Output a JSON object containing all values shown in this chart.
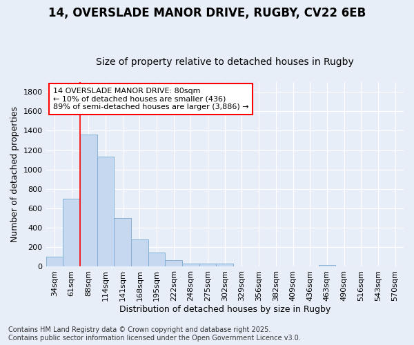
{
  "title1": "14, OVERSLADE MANOR DRIVE, RUGBY, CV22 6EB",
  "title2": "Size of property relative to detached houses in Rugby",
  "xlabel": "Distribution of detached houses by size in Rugby",
  "ylabel": "Number of detached properties",
  "categories": [
    "34sqm",
    "61sqm",
    "88sqm",
    "114sqm",
    "141sqm",
    "168sqm",
    "195sqm",
    "222sqm",
    "248sqm",
    "275sqm",
    "302sqm",
    "329sqm",
    "356sqm",
    "382sqm",
    "409sqm",
    "436sqm",
    "463sqm",
    "490sqm",
    "516sqm",
    "543sqm",
    "570sqm"
  ],
  "values": [
    100,
    700,
    1360,
    1130,
    500,
    280,
    145,
    70,
    35,
    30,
    30,
    0,
    0,
    0,
    0,
    0,
    20,
    0,
    0,
    0,
    0
  ],
  "bar_color": "#c5d8f0",
  "bar_edge_color": "#7aaad0",
  "vline_x_idx": 2,
  "vline_color": "red",
  "annotation_text": "14 OVERSLADE MANOR DRIVE: 80sqm\n← 10% of detached houses are smaller (436)\n89% of semi-detached houses are larger (3,886) →",
  "annotation_box_color": "white",
  "annotation_box_edge": "red",
  "ylim": [
    0,
    1900
  ],
  "yticks": [
    0,
    200,
    400,
    600,
    800,
    1000,
    1200,
    1400,
    1600,
    1800
  ],
  "footer": "Contains HM Land Registry data © Crown copyright and database right 2025.\nContains public sector information licensed under the Open Government Licence v3.0.",
  "bg_color": "#e8eef8",
  "grid_color": "#ffffff",
  "title_fontsize": 12,
  "subtitle_fontsize": 10,
  "axis_label_fontsize": 9,
  "tick_fontsize": 8,
  "footer_fontsize": 7
}
